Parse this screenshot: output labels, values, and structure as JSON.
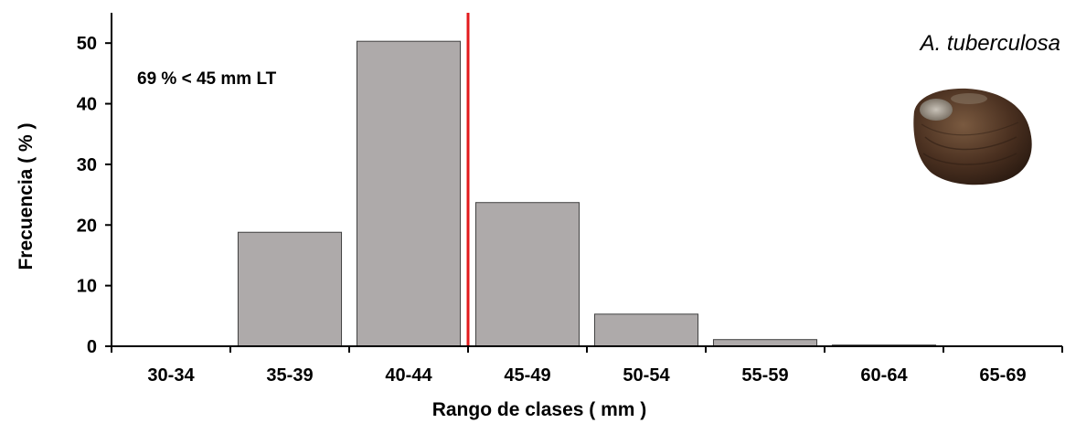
{
  "chart_data": {
    "type": "bar",
    "categories": [
      "30-34",
      "35-39",
      "40-44",
      "45-49",
      "50-54",
      "55-59",
      "60-64",
      "65-69"
    ],
    "values": [
      0,
      18.8,
      50.3,
      23.7,
      5.3,
      1.1,
      0.2,
      0
    ],
    "title": "",
    "xlabel": "Rango de clases ( mm )",
    "ylabel": "Frecuencia ( % )",
    "ylim": [
      0,
      55
    ],
    "yticks": [
      0,
      10,
      20,
      30,
      40,
      50
    ],
    "grid": false,
    "reference_line": {
      "x": 45,
      "color": "#e31a1c"
    },
    "annotations": {
      "threshold_text": "69 % < 45 mm LT",
      "species": "A. tuberculosa"
    },
    "colors": {
      "bar_fill": "#aeaaaa",
      "bar_stroke": "#404040",
      "axis": "#000000"
    },
    "image": "clam-shell-photo"
  }
}
